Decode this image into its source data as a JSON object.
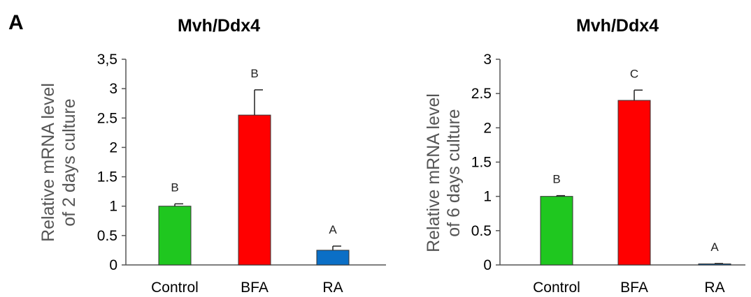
{
  "figure": {
    "panel_label": "A"
  },
  "chart_data": [
    {
      "type": "bar",
      "title": "Mvh/Ddx4",
      "ylabel_lines": [
        "Relative mRNA level",
        "of 2 days culture"
      ],
      "xlabel": "",
      "categories": [
        "Control",
        "BFA",
        "RA"
      ],
      "values": [
        1.0,
        2.55,
        0.25
      ],
      "errors": [
        0.04,
        0.43,
        0.07
      ],
      "significance": [
        "B",
        "B",
        "A"
      ],
      "colors": [
        "#1fc71f",
        "#ff0000",
        "#0b6fc6"
      ],
      "ylim": [
        0,
        3.5
      ],
      "yticks": [
        0,
        0.5,
        1,
        1.5,
        2,
        2.5,
        3,
        3.5
      ],
      "ytick_labels": [
        "0",
        "0.5",
        "1",
        "1.5",
        "2",
        "2.5",
        "3",
        "3,5"
      ],
      "grid": false
    },
    {
      "type": "bar",
      "title": "Mvh/Ddx4",
      "ylabel_lines": [
        "Relative mRNA level",
        "of 6 days culture"
      ],
      "xlabel": "",
      "categories": [
        "Control",
        "BFA",
        "RA"
      ],
      "values": [
        1.0,
        2.4,
        0.01
      ],
      "errors": [
        0.01,
        0.15,
        0.01
      ],
      "significance": [
        "B",
        "C",
        "A"
      ],
      "colors": [
        "#1fc71f",
        "#ff0000",
        "#0b6fc6"
      ],
      "ylim": [
        0,
        3
      ],
      "yticks": [
        0,
        0.5,
        1,
        1.5,
        2,
        2.5,
        3
      ],
      "ytick_labels": [
        "0",
        "0.5",
        "1",
        "1.5",
        "2",
        "2.5",
        "3"
      ],
      "grid": false
    }
  ]
}
